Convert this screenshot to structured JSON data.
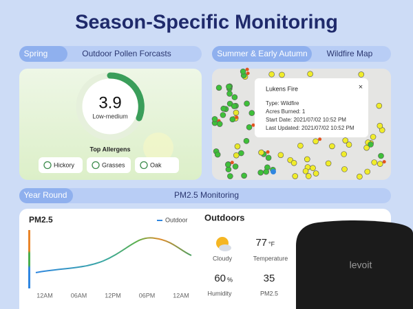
{
  "header": {
    "title": "Season-Specific Monitoring"
  },
  "spring": {
    "tag": "Spring",
    "label": "Outdoor Pollen Forcasts",
    "gauge": {
      "value": "3.9",
      "level": "Low-medium"
    },
    "allergens_title": "Top Allergens",
    "allergens": [
      "Hickory",
      "Grasses",
      "Oak"
    ]
  },
  "summer": {
    "tag": "Summer & Early Autumn",
    "label": "Wildfire Map",
    "popup": {
      "title": "Lukens Fire",
      "lines": [
        "Type: Wildfire",
        "Acres Burned: 1",
        "Start Date: 2021/07/02 10:52 PM",
        "Last Updated: 2021/07/02 10:52 PM"
      ]
    }
  },
  "year_round": {
    "tag": "Year Round",
    "label": "PM2.5 Monitoring",
    "chart": {
      "title": "PM2.5",
      "legend": "Outdoor",
      "x_labels": [
        "12AM",
        "06AM",
        "12PM",
        "06PM",
        "12AM"
      ]
    },
    "outdoors": {
      "title": "Outdoors",
      "temperature": {
        "value": "77",
        "unit": "°F",
        "label": "Temperature"
      },
      "condition": "Cloudy",
      "humidity": {
        "value": "60",
        "unit": "%",
        "label": "Humidity"
      },
      "pm25": {
        "value": "35",
        "label": "PM2.5"
      }
    }
  },
  "device": {
    "brand": "levoit"
  }
}
